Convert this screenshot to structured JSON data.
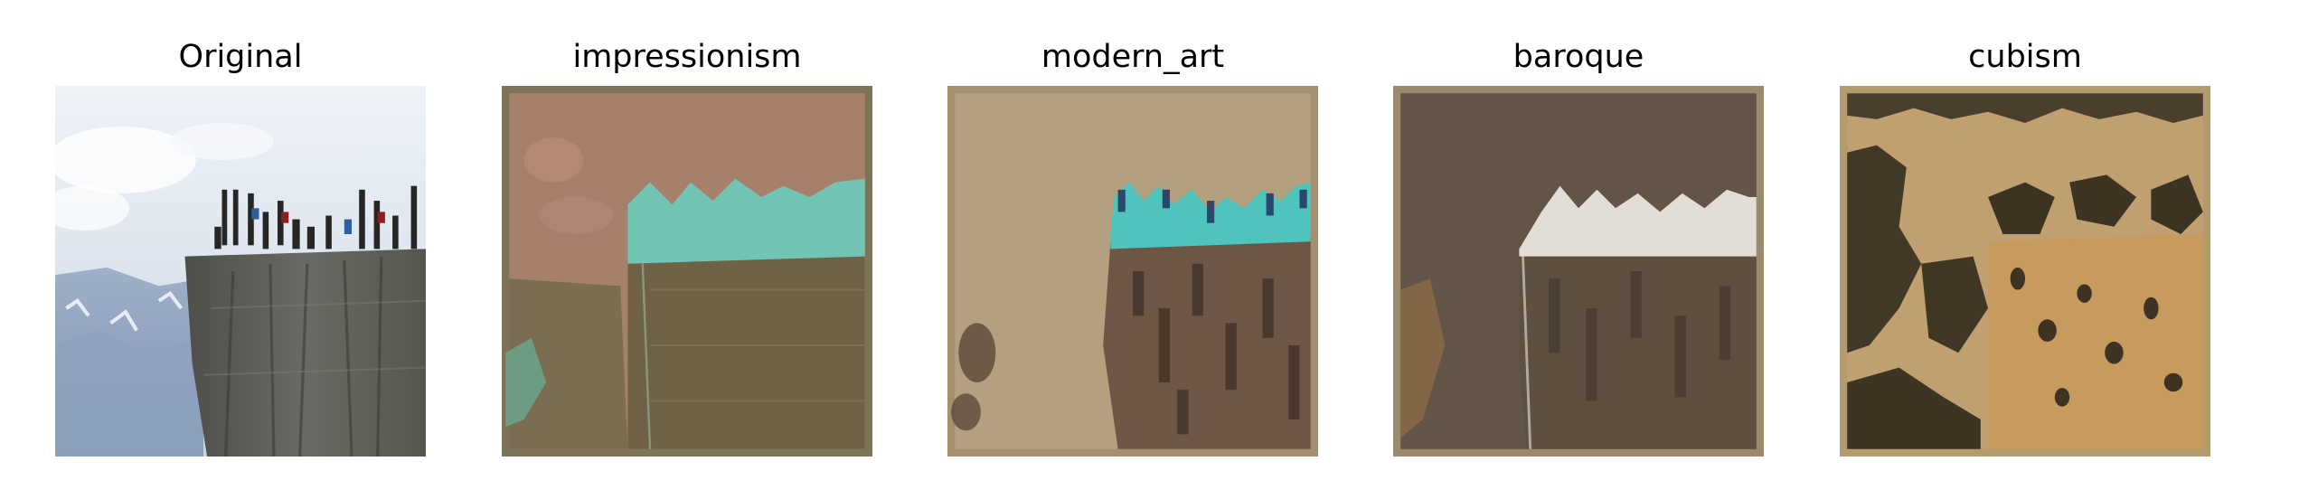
{
  "figure": {
    "panels": [
      {
        "title": "Original",
        "style": "photo"
      },
      {
        "title": "impressionism",
        "style": "impressionism"
      },
      {
        "title": "modern_art",
        "style": "modern_art"
      },
      {
        "title": "baroque",
        "style": "baroque"
      },
      {
        "title": "cubism",
        "style": "cubism"
      }
    ]
  }
}
